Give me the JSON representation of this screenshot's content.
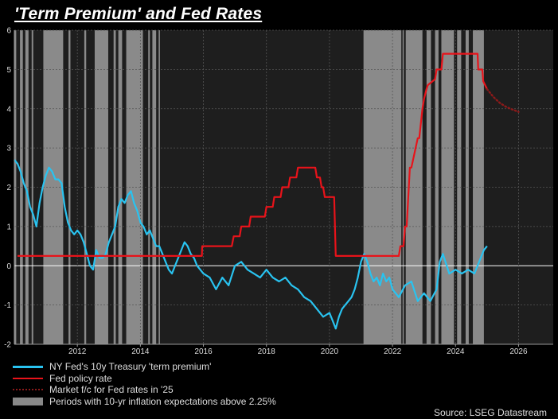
{
  "title": "'Term Premium' and Fed Rates",
  "source": "Source: LSEG Datastream",
  "legend": [
    {
      "label": "NY Fed's 10y Treasury 'term premium'",
      "kind": "line",
      "color": "#29c3f0"
    },
    {
      "label": "Fed policy rate",
      "kind": "line",
      "color": "#e8131a"
    },
    {
      "label": "Market f/c for Fed rates in '25",
      "kind": "dotted",
      "color": "#8b1a1a"
    },
    {
      "label": "Periods with 10-yr inflation expectations above 2.25%",
      "kind": "box",
      "color": "#888888"
    }
  ],
  "chart_data": {
    "type": "line",
    "xlim": [
      2010.0,
      2027.1
    ],
    "ylim": [
      -2,
      6
    ],
    "x_ticks": [
      2012,
      2014,
      2016,
      2018,
      2020,
      2022,
      2024,
      2026
    ],
    "y_ticks": [
      -2,
      -1,
      0,
      1,
      2,
      3,
      4,
      5,
      6
    ],
    "grid": true,
    "legend_position": "bottom-left",
    "shaded_periods": [
      [
        2010.0,
        2010.06
      ],
      [
        2010.18,
        2010.27
      ],
      [
        2010.35,
        2010.45
      ],
      [
        2010.55,
        2010.6
      ],
      [
        2010.92,
        2011.55
      ],
      [
        2011.72,
        2011.78
      ],
      [
        2012.22,
        2012.28
      ],
      [
        2012.55,
        2012.98
      ],
      [
        2013.15,
        2013.22
      ],
      [
        2013.3,
        2013.42
      ],
      [
        2013.55,
        2014.08
      ],
      [
        2014.25,
        2014.3
      ],
      [
        2014.38,
        2014.5
      ],
      [
        2014.58,
        2014.62
      ],
      [
        2021.08,
        2022.28
      ],
      [
        2022.32,
        2022.36
      ],
      [
        2022.42,
        2022.95
      ],
      [
        2023.08,
        2023.22
      ],
      [
        2023.35,
        2023.46
      ],
      [
        2023.55,
        2023.95
      ],
      [
        2024.05,
        2024.18
      ],
      [
        2024.32,
        2024.42
      ],
      [
        2024.55,
        2024.9
      ]
    ],
    "series": [
      {
        "name": "NY Fed's 10y Treasury 'term premium'",
        "color": "#29c3f0",
        "x": [
          2010.0,
          2010.1,
          2010.2,
          2010.3,
          2010.4,
          2010.5,
          2010.6,
          2010.7,
          2010.8,
          2010.9,
          2011.0,
          2011.1,
          2011.2,
          2011.3,
          2011.4,
          2011.5,
          2011.6,
          2011.7,
          2011.8,
          2011.9,
          2012.0,
          2012.1,
          2012.2,
          2012.3,
          2012.4,
          2012.5,
          2012.6,
          2012.7,
          2012.8,
          2012.9,
          2013.0,
          2013.1,
          2013.2,
          2013.3,
          2013.4,
          2013.5,
          2013.6,
          2013.7,
          2013.8,
          2013.9,
          2014.0,
          2014.1,
          2014.2,
          2014.3,
          2014.4,
          2014.5,
          2014.6,
          2014.7,
          2014.8,
          2014.9,
          2015.0,
          2015.1,
          2015.2,
          2015.3,
          2015.4,
          2015.5,
          2015.6,
          2015.7,
          2015.8,
          2015.9,
          2016.0,
          2016.2,
          2016.4,
          2016.6,
          2016.8,
          2017.0,
          2017.2,
          2017.4,
          2017.6,
          2017.8,
          2018.0,
          2018.2,
          2018.4,
          2018.6,
          2018.8,
          2019.0,
          2019.2,
          2019.4,
          2019.6,
          2019.8,
          2020.0,
          2020.1,
          2020.2,
          2020.3,
          2020.4,
          2020.5,
          2020.6,
          2020.7,
          2020.8,
          2020.9,
          2021.0,
          2021.1,
          2021.2,
          2021.3,
          2021.4,
          2021.5,
          2021.6,
          2021.7,
          2021.8,
          2021.9,
          2022.0,
          2022.2,
          2022.4,
          2022.6,
          2022.8,
          2023.0,
          2023.2,
          2023.4,
          2023.5,
          2023.6,
          2023.8,
          2024.0,
          2024.2,
          2024.4,
          2024.6,
          2024.8,
          2024.9,
          2025.0
        ],
        "values": [
          2.7,
          2.6,
          2.4,
          2.1,
          1.9,
          1.5,
          1.3,
          1.0,
          1.6,
          2.0,
          2.3,
          2.5,
          2.4,
          2.2,
          2.2,
          2.1,
          1.5,
          1.1,
          0.9,
          0.8,
          0.9,
          0.8,
          0.6,
          0.3,
          0.0,
          -0.1,
          0.4,
          0.2,
          0.2,
          0.3,
          0.6,
          0.8,
          1.0,
          1.5,
          1.7,
          1.6,
          1.8,
          1.9,
          1.6,
          1.4,
          1.1,
          1.0,
          0.8,
          0.9,
          0.7,
          0.5,
          0.5,
          0.3,
          0.1,
          -0.1,
          -0.2,
          0.0,
          0.2,
          0.4,
          0.6,
          0.5,
          0.3,
          0.2,
          0.0,
          -0.1,
          -0.2,
          -0.3,
          -0.6,
          -0.3,
          -0.5,
          0.0,
          0.1,
          -0.1,
          -0.2,
          -0.3,
          -0.1,
          -0.3,
          -0.4,
          -0.3,
          -0.5,
          -0.6,
          -0.8,
          -0.9,
          -1.1,
          -1.3,
          -1.2,
          -1.4,
          -1.6,
          -1.3,
          -1.1,
          -1.0,
          -0.9,
          -0.8,
          -0.6,
          -0.3,
          0.1,
          0.3,
          0.1,
          -0.2,
          -0.4,
          -0.3,
          -0.5,
          -0.2,
          -0.4,
          -0.3,
          -0.6,
          -0.8,
          -0.5,
          -0.4,
          -0.9,
          -0.7,
          -0.9,
          -0.6,
          0.1,
          0.3,
          -0.2,
          -0.1,
          -0.2,
          -0.1,
          -0.2,
          0.2,
          0.4,
          0.5
        ]
      },
      {
        "name": "Fed policy rate",
        "color": "#e8131a",
        "x": [
          2010.1,
          2015.95,
          2015.96,
          2016.9,
          2016.96,
          2017.15,
          2017.2,
          2017.45,
          2017.5,
          2017.95,
          2018.0,
          2018.2,
          2018.25,
          2018.45,
          2018.5,
          2018.7,
          2018.75,
          2018.95,
          2019.0,
          2019.55,
          2019.6,
          2019.7,
          2019.75,
          2019.8,
          2019.85,
          2020.15,
          2020.2,
          2022.2,
          2022.25,
          2022.35,
          2022.4,
          2022.45,
          2022.5,
          2022.55,
          2022.6,
          2022.8,
          2022.85,
          2022.95,
          2023.0,
          2023.08,
          2023.12,
          2023.35,
          2023.4,
          2023.55,
          2023.6,
          2024.7,
          2024.72,
          2024.85,
          2024.88,
          2025.0
        ],
        "values": [
          0.25,
          0.25,
          0.5,
          0.5,
          0.75,
          0.75,
          1.0,
          1.0,
          1.25,
          1.25,
          1.5,
          1.5,
          1.75,
          1.75,
          2.0,
          2.0,
          2.25,
          2.25,
          2.5,
          2.5,
          2.25,
          2.25,
          2.0,
          2.0,
          1.75,
          1.75,
          0.25,
          0.25,
          0.5,
          0.5,
          1.0,
          1.0,
          1.75,
          2.5,
          2.5,
          3.25,
          3.25,
          4.0,
          4.25,
          4.5,
          4.6,
          4.75,
          5.0,
          5.0,
          5.4,
          5.4,
          5.0,
          5.0,
          4.7,
          4.5
        ]
      },
      {
        "name": "Market f/c for Fed rates in '25",
        "color": "#8b1a1a",
        "dotted": true,
        "x": [
          2025.0,
          2025.2,
          2025.4,
          2025.6,
          2025.8,
          2026.0
        ],
        "values": [
          4.5,
          4.3,
          4.15,
          4.05,
          3.98,
          3.92
        ]
      }
    ]
  }
}
